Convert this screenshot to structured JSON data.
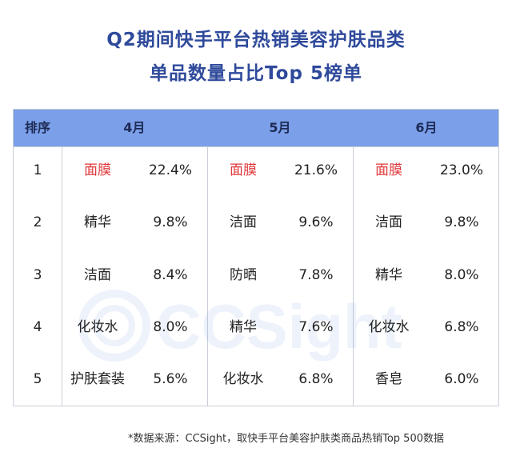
{
  "title": {
    "line1": "Q2期间快手平台热销美容护肤品类",
    "line2": "单品数量占比Top 5榜单"
  },
  "table": {
    "headers": [
      "排序",
      "4月",
      "5月",
      "6月"
    ],
    "rows": [
      {
        "rank": "1",
        "m4": [
          "面膜",
          "22.4%"
        ],
        "m5": [
          "面膜",
          "21.6%"
        ],
        "m6": [
          "面膜",
          "23.0%"
        ]
      },
      {
        "rank": "2",
        "m4": [
          "精华",
          "9.8%"
        ],
        "m5": [
          "洁面",
          "9.6%"
        ],
        "m6": [
          "洁面",
          "9.8%"
        ]
      },
      {
        "rank": "3",
        "m4": [
          "洁面",
          "8.4%"
        ],
        "m5": [
          "防晒",
          "7.8%"
        ],
        "m6": [
          "精华",
          "8.0%"
        ]
      },
      {
        "rank": "4",
        "m4": [
          "化妆水",
          "8.0%"
        ],
        "m5": [
          "精华",
          "7.6%"
        ],
        "m6": [
          "化妆水",
          "6.8%"
        ]
      },
      {
        "rank": "5",
        "m4": [
          "护肤套装",
          "5.6%"
        ],
        "m5": [
          "化妆水",
          "6.8%"
        ],
        "m6": [
          "香皂",
          "6.0%"
        ]
      }
    ]
  },
  "watermark": "CCSight",
  "footer": "*数据来源：CCSight，取快手平台美容护肤类商品热销Top 500数据",
  "colors": {
    "title": "#2f4a9b",
    "header_bg": "#7b9fe8",
    "highlight": "#e0383b"
  }
}
